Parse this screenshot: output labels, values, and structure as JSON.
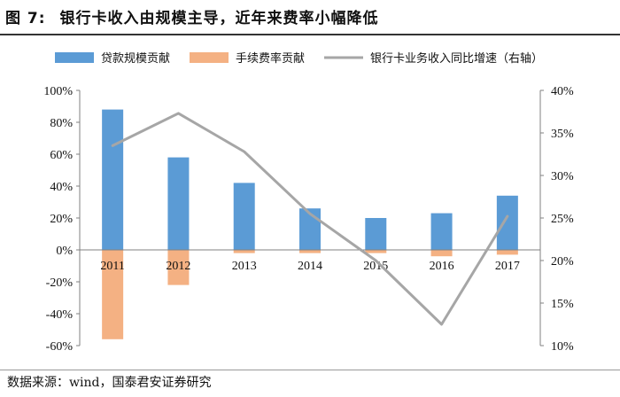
{
  "header": {
    "figure_label": "图 7:",
    "title": "银行卡收入由规模主导，近年来费率小幅降低"
  },
  "footer": {
    "source": "数据来源：wind，国泰君安证券研究"
  },
  "colors": {
    "scale_bar": "#5B9BD5",
    "fee_bar": "#F4B183",
    "growth_line": "#A6A6A6",
    "axis": "#808080"
  },
  "chart_data": {
    "type": "bar",
    "title": "银行卡收入由规模主导，近年来费率小幅降低",
    "categories": [
      "2011",
      "2012",
      "2013",
      "2014",
      "2015",
      "2016",
      "2017"
    ],
    "series": [
      {
        "name": "贷款规模贡献",
        "type": "bar",
        "axis": "left",
        "values": [
          88,
          58,
          42,
          26,
          20,
          23,
          34
        ]
      },
      {
        "name": "手续费率贡献",
        "type": "bar",
        "axis": "left",
        "values": [
          -56,
          -22,
          -2,
          -2,
          -2,
          -4,
          -3
        ]
      },
      {
        "name": "银行卡业务收入同比增速（右轴）",
        "type": "line",
        "axis": "right",
        "values": [
          33.5,
          37.3,
          32.8,
          25.5,
          20.0,
          12.5,
          25.2
        ]
      }
    ],
    "left_axis": {
      "ylim": [
        -60,
        100
      ],
      "ticks": [
        100,
        80,
        60,
        40,
        20,
        0,
        -20,
        -40,
        -60
      ],
      "tick_labels": [
        "100%",
        "80%",
        "60%",
        "40%",
        "20%",
        "0%",
        "-20%",
        "-40%",
        "-60%"
      ]
    },
    "right_axis": {
      "ylim": [
        10,
        40
      ],
      "ticks": [
        40,
        35,
        30,
        25,
        20,
        15,
        10
      ],
      "tick_labels": [
        "40%",
        "35%",
        "30%",
        "25%",
        "20%",
        "15%",
        "10%"
      ]
    },
    "legend": {
      "position": "top",
      "labels": [
        "贷款规模贡献",
        "手续费率贡献",
        "银行卡业务收入同比增速（右轴）"
      ]
    },
    "grid": false
  }
}
